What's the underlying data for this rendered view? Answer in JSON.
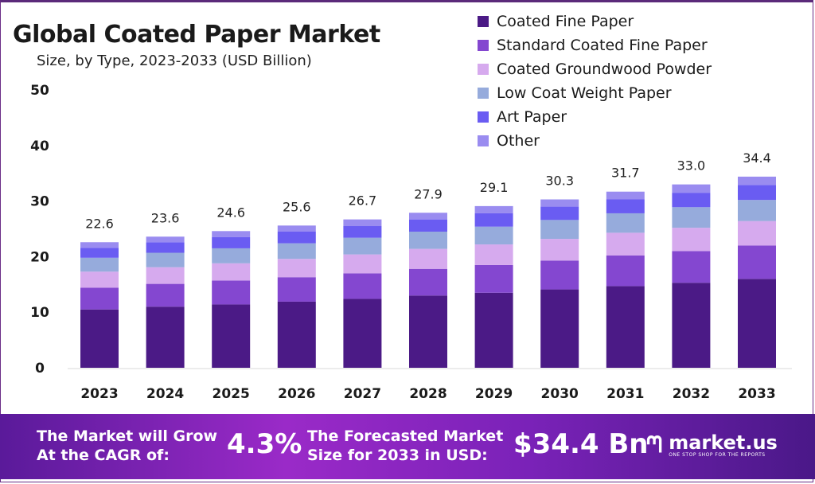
{
  "chart_data": {
    "type": "bar",
    "stacked": true,
    "title": "Global Coated Paper Market",
    "subtitle": "Size, by Type, 2023-2033 (USD Billion)",
    "categories": [
      "2023",
      "2024",
      "2025",
      "2026",
      "2027",
      "2028",
      "2029",
      "2030",
      "2031",
      "2032",
      "2033"
    ],
    "totals": [
      "22.6",
      "23.6",
      "24.6",
      "25.6",
      "26.7",
      "27.9",
      "29.1",
      "30.3",
      "31.7",
      "33.0",
      "34.4"
    ],
    "series": [
      {
        "name": "Coated Fine Paper",
        "color": "#4b1a86",
        "values": [
          10.5,
          11.0,
          11.4,
          11.9,
          12.4,
          13.0,
          13.5,
          14.1,
          14.7,
          15.3,
          16.0
        ]
      },
      {
        "name": "Standard Coated Fine Paper",
        "color": "#8447d0",
        "values": [
          3.9,
          4.1,
          4.3,
          4.4,
          4.6,
          4.8,
          5.0,
          5.2,
          5.5,
          5.7,
          6.0
        ]
      },
      {
        "name": "Coated Groundwood Powder",
        "color": "#d6aaee",
        "values": [
          2.9,
          3.0,
          3.1,
          3.3,
          3.4,
          3.6,
          3.7,
          3.9,
          4.1,
          4.2,
          4.4
        ]
      },
      {
        "name": "Low Coat Weight Paper",
        "color": "#96abdc",
        "values": [
          2.5,
          2.6,
          2.7,
          2.8,
          3.0,
          3.1,
          3.2,
          3.4,
          3.5,
          3.7,
          3.8
        ]
      },
      {
        "name": "Art Paper",
        "color": "#6a5cf2",
        "values": [
          1.8,
          1.9,
          2.0,
          2.1,
          2.1,
          2.2,
          2.4,
          2.4,
          2.5,
          2.6,
          2.7
        ]
      },
      {
        "name": "Other",
        "color": "#9a8cf0",
        "values": [
          1.0,
          1.0,
          1.1,
          1.1,
          1.2,
          1.2,
          1.3,
          1.3,
          1.4,
          1.5,
          1.5
        ]
      }
    ],
    "yticks": [
      "0",
      "10",
      "20",
      "30",
      "40",
      "50"
    ],
    "ylim": [
      0,
      50
    ],
    "grid": false,
    "legend": "top-right"
  },
  "banner": {
    "cagr_label": "The Market will Grow At the CAGR of:",
    "cagr_value": "4.3%",
    "forecast_label": "The Forecasted Market Size for 2033 in USD:",
    "forecast_value": "$34.4 Bn",
    "logo_name": "market.us",
    "logo_tagline": "ONE STOP SHOP FOR THE REPORTS"
  }
}
